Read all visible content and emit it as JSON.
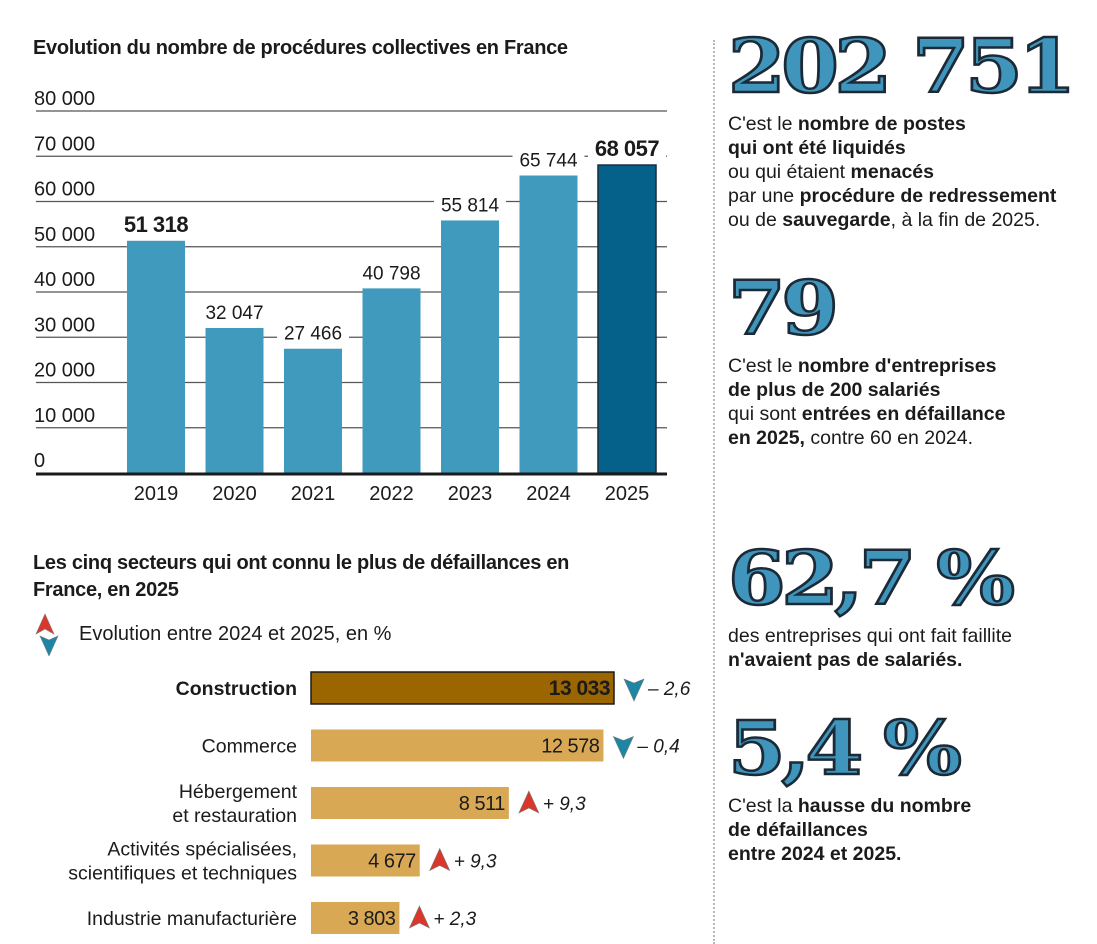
{
  "chart_data": [
    {
      "type": "bar",
      "title": "Evolution du nombre de procédures collectives en France",
      "categories": [
        "2019",
        "2020",
        "2021",
        "2022",
        "2023",
        "2024",
        "2025"
      ],
      "values": [
        51318,
        32047,
        27466,
        40798,
        55814,
        65744,
        68057
      ],
      "value_labels": [
        "51 318",
        "32 047",
        "27 466",
        "40 798",
        "55 814",
        "65 744",
        "68 057"
      ],
      "highlighted": [
        0,
        6
      ],
      "ylim": [
        0,
        80000
      ],
      "yticks": [
        0,
        10000,
        20000,
        30000,
        40000,
        50000,
        60000,
        70000,
        80000
      ],
      "ytick_labels": [
        "0",
        "10 000",
        "20 000",
        "30 000",
        "40 000",
        "50 000",
        "60 000",
        "70 000",
        "80 000"
      ],
      "grid": true,
      "xlabel": "",
      "ylabel": "",
      "colors": {
        "bar": "#409abd",
        "highlight_bar": "#05618a",
        "grid": "#555555",
        "axis": "#1b1b1b"
      }
    },
    {
      "type": "bar",
      "orientation": "horizontal",
      "title": "Les cinq secteurs qui ont connu le plus de défaillances en France, en 2025",
      "legend": "Evolution entre 2024 et 2025, en %",
      "categories": [
        "Construction",
        "Commerce",
        "Hébergement et restauration",
        "Activités spécialisées, scientifiques et techniques",
        "Industrie manufacturière"
      ],
      "category_lines": [
        [
          "Construction"
        ],
        [
          "Commerce"
        ],
        [
          "Hébergement",
          "et restauration"
        ],
        [
          "Activités spécialisées,",
          "scientifiques et techniques"
        ],
        [
          "Industrie manufacturière"
        ]
      ],
      "values": [
        13033,
        12578,
        8511,
        4677,
        3803
      ],
      "value_labels": [
        "13 033",
        "12 578",
        "8 511",
        "4 677",
        "3 803"
      ],
      "changes": [
        -2.6,
        -0.4,
        9.3,
        9.3,
        2.3
      ],
      "change_labels": [
        "– 2,6",
        "– 0,4",
        "+ 9,3",
        "+ 9,3",
        "+ 2,3"
      ],
      "highlighted": [
        0
      ],
      "colors": {
        "bar": "#d9a855",
        "highlight_bar": "#9b6500",
        "up": "#d9372b",
        "down": "#1d86a5"
      }
    }
  ],
  "stats": [
    {
      "number": "202 751",
      "text": [
        [
          [
            "C'est le ",
            false
          ],
          [
            "nombre de postes",
            true
          ]
        ],
        [
          [
            "qui ont été liquidés",
            true
          ]
        ],
        [
          [
            "ou qui étaient ",
            false
          ],
          [
            "menacés",
            true
          ]
        ],
        [
          [
            "par une ",
            false
          ],
          [
            "procédure de redressement",
            true
          ]
        ],
        [
          [
            "ou de ",
            false
          ],
          [
            "sauvegarde",
            true
          ],
          [
            ", à la fin de 2025.",
            false
          ]
        ]
      ]
    },
    {
      "number": "79",
      "text": [
        [
          [
            "C'est le ",
            false
          ],
          [
            "nombre d'entreprises",
            true
          ]
        ],
        [
          [
            "de plus de 200 salariés",
            true
          ]
        ],
        [
          [
            "qui sont ",
            false
          ],
          [
            "entrées en défaillance",
            true
          ]
        ],
        [
          [
            "en 2025,",
            true
          ],
          [
            " contre 60 en 2024.",
            false
          ]
        ]
      ]
    },
    {
      "number": "62,7 %",
      "text": [
        [
          [
            "des entreprises qui ont fait faillite",
            false
          ]
        ],
        [
          [
            "n'avaient pas de salariés.",
            true
          ]
        ]
      ]
    },
    {
      "number": "5,4 %",
      "text": [
        [
          [
            "C'est la ",
            false
          ],
          [
            "hausse du nombre",
            true
          ]
        ],
        [
          [
            "de défaillances",
            true
          ]
        ],
        [
          [
            "entre 2024 et 2025.",
            true
          ]
        ]
      ]
    }
  ],
  "icons": {
    "legend": "up-down-arrows-icon",
    "up": "up-arrow-icon",
    "down": "down-arrow-icon"
  }
}
